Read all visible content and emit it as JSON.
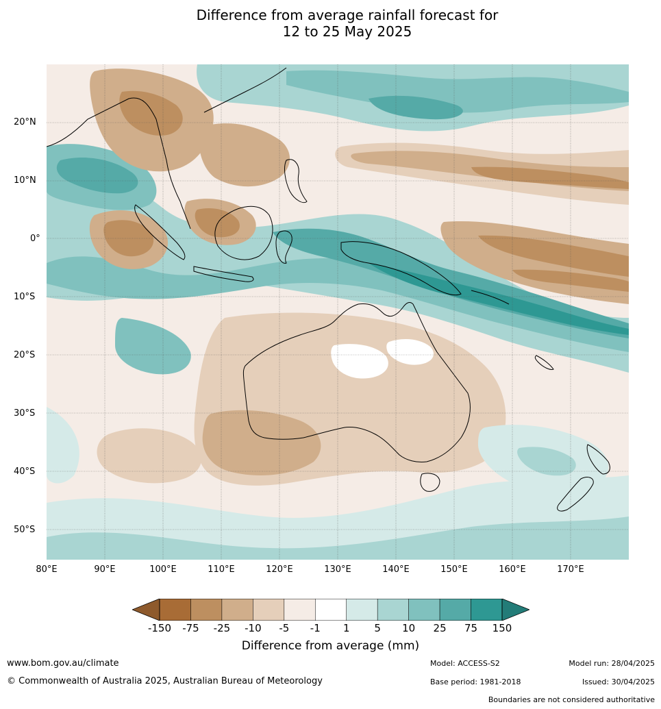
{
  "title": {
    "line1": "Difference from average rainfall forecast for",
    "line2": "12 to 25 May 2025"
  },
  "map": {
    "lat_labels": [
      "20°N",
      "10°N",
      "0°",
      "10°S",
      "20°S",
      "30°S",
      "40°S",
      "50°S"
    ],
    "lon_labels": [
      "80°E",
      "90°E",
      "100°E",
      "110°E",
      "120°E",
      "130°E",
      "140°E",
      "150°E",
      "160°E",
      "170°E"
    ],
    "lon_range": [
      80,
      180
    ],
    "lat_range": [
      -55,
      30
    ]
  },
  "colorbar": {
    "title": "Difference from average (mm)",
    "tick_labels": [
      "-150",
      "-75",
      "-25",
      "-10",
      "-5",
      "-1",
      "1",
      "5",
      "10",
      "25",
      "75",
      "150"
    ],
    "colors": [
      "#a86c36",
      "#bd8f60",
      "#d0ae8b",
      "#e5cfba",
      "#f5ece6",
      "#ffffff",
      "#d5eae8",
      "#a9d5d2",
      "#80c1be",
      "#55aaa7",
      "#2e9893"
    ],
    "under_color": "#8e5a2c",
    "over_color": "#237c78"
  },
  "footer": {
    "website": "www.bom.gov.au/climate",
    "copyright": "© Commonwealth of Australia 2025, Australian Bureau of Meteorology",
    "model": "Model: ACCESS-S2",
    "base_period": "Base period: 1981-2018",
    "model_run": "Model run: 28/04/2025",
    "issued": "Issued: 30/04/2025",
    "boundaries": "Boundaries are not considered authoritative"
  }
}
